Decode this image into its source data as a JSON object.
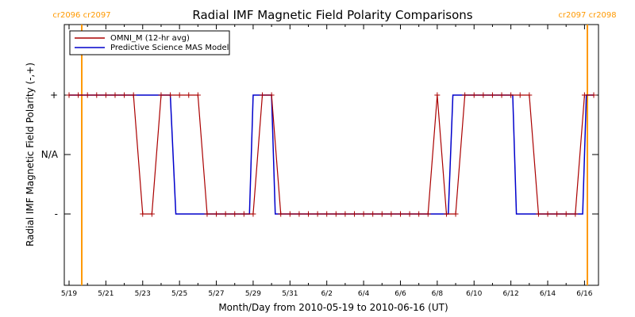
{
  "chart_data": {
    "type": "line",
    "title": "Radial IMF Magnetic Field Polarity Comparisons",
    "xlabel": "Month/Day from 2010-05-19 to 2010-06-16 (UT)",
    "ylabel": "Radial IMF Magnetic Field Polarity (-,+)",
    "x_range": [
      "2010-05-19",
      "2010-06-16"
    ],
    "x_tick_labels": [
      "5/19",
      "5/21",
      "5/23",
      "5/25",
      "5/27",
      "5/29",
      "5/31",
      "6/2",
      "6/4",
      "6/6",
      "6/8",
      "6/10",
      "6/12",
      "6/14",
      "6/16"
    ],
    "y_tick_labels": [
      "+",
      "N/A",
      "-"
    ],
    "y_values_legend": {
      "plus": 1,
      "na": 0,
      "minus": -1
    },
    "carrington_markers": [
      {
        "label": "cr2096 cr2097",
        "date": "2010-05-19.8",
        "color": "#ff9900"
      },
      {
        "label": "cr2097 cr2098",
        "date": "2010-06-16.5",
        "color": "#ff9900"
      }
    ],
    "legend_position": "top-left",
    "series": [
      {
        "name": "OMNI_M (12-hr avg)",
        "color": "#aa0000",
        "marker": "plus",
        "points": [
          [
            0.0,
            1
          ],
          [
            0.5,
            1
          ],
          [
            1.0,
            1
          ],
          [
            1.5,
            1
          ],
          [
            2.0,
            1
          ],
          [
            2.5,
            1
          ],
          [
            3.0,
            1
          ],
          [
            3.5,
            1
          ],
          [
            4.0,
            -1
          ],
          [
            4.5,
            -1
          ],
          [
            5.0,
            1
          ],
          [
            5.5,
            1
          ],
          [
            6.0,
            1
          ],
          [
            6.5,
            1
          ],
          [
            7.0,
            1
          ],
          [
            7.5,
            -1
          ],
          [
            8.0,
            -1
          ],
          [
            8.5,
            -1
          ],
          [
            9.0,
            -1
          ],
          [
            9.5,
            -1
          ],
          [
            10.0,
            -1
          ],
          [
            10.5,
            1
          ],
          [
            11.0,
            1
          ],
          [
            11.5,
            -1
          ],
          [
            12.0,
            -1
          ],
          [
            12.5,
            -1
          ],
          [
            13.0,
            -1
          ],
          [
            13.5,
            -1
          ],
          [
            14.0,
            -1
          ],
          [
            14.5,
            -1
          ],
          [
            15.0,
            -1
          ],
          [
            15.5,
            -1
          ],
          [
            16.0,
            -1
          ],
          [
            16.5,
            -1
          ],
          [
            17.0,
            -1
          ],
          [
            17.5,
            -1
          ],
          [
            18.0,
            -1
          ],
          [
            18.5,
            -1
          ],
          [
            19.0,
            -1
          ],
          [
            19.5,
            -1
          ],
          [
            20.0,
            1
          ],
          [
            20.5,
            -1
          ],
          [
            21.0,
            -1
          ],
          [
            21.5,
            1
          ],
          [
            22.0,
            1
          ],
          [
            22.5,
            1
          ],
          [
            23.0,
            1
          ],
          [
            23.5,
            1
          ],
          [
            24.0,
            1
          ],
          [
            24.5,
            1
          ],
          [
            25.0,
            1
          ],
          [
            25.5,
            -1
          ],
          [
            26.0,
            -1
          ],
          [
            26.5,
            -1
          ],
          [
            27.0,
            -1
          ],
          [
            27.5,
            -1
          ],
          [
            28.0,
            1
          ],
          [
            28.5,
            1
          ]
        ]
      },
      {
        "name": "Predictive Science MAS Model",
        "color": "#0000cc",
        "step": true,
        "segments": [
          [
            0.0,
            1
          ],
          [
            5.5,
            1
          ],
          [
            5.8,
            -1
          ],
          [
            9.8,
            -1
          ],
          [
            10.0,
            1
          ],
          [
            11.0,
            1
          ],
          [
            11.2,
            -1
          ],
          [
            20.6,
            -1
          ],
          [
            20.85,
            1
          ],
          [
            24.1,
            1
          ],
          [
            24.3,
            -1
          ],
          [
            27.9,
            -1
          ],
          [
            28.1,
            1
          ],
          [
            28.5,
            1
          ]
        ]
      }
    ]
  }
}
